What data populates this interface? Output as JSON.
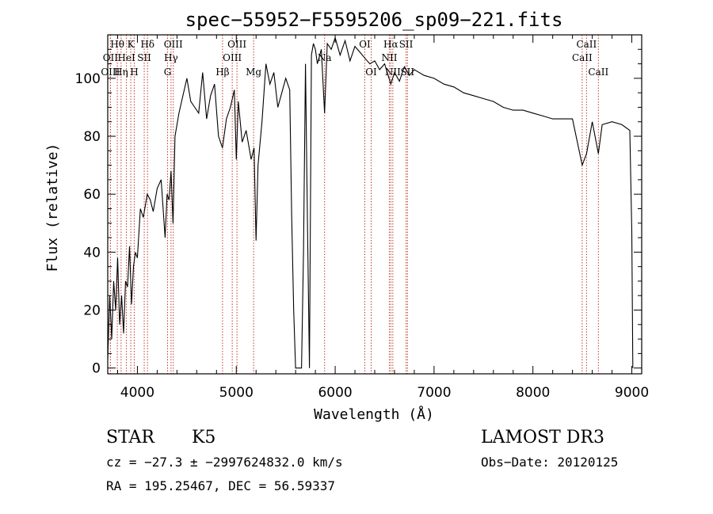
{
  "chart_data": {
    "type": "line",
    "title": "spec−55952−F5595206_sp09−221.fits",
    "xlabel": "Wavelength (Å)",
    "ylabel": "Flux (relative)",
    "xlim": [
      3700,
      9100
    ],
    "ylim": [
      -2,
      115
    ],
    "x_ticks": [
      4000,
      5000,
      6000,
      7000,
      8000,
      9000
    ],
    "y_ticks": [
      0,
      20,
      40,
      60,
      80,
      100
    ],
    "grid": false,
    "series": [
      {
        "x": [
          3700,
          3720,
          3740,
          3760,
          3780,
          3800,
          3820,
          3840,
          3860,
          3880,
          3900,
          3920,
          3940,
          3960,
          3980,
          4000,
          4030,
          4060,
          4100,
          4130,
          4160,
          4200,
          4240,
          4280,
          4300,
          4320,
          4340,
          4360,
          4380,
          4420,
          4460,
          4500,
          4540,
          4580,
          4620,
          4660,
          4700,
          4740,
          4780,
          4820,
          4860,
          4900,
          4940,
          4980,
          5000,
          5020,
          5060,
          5100,
          5150,
          5180,
          5200,
          5220,
          5260,
          5300,
          5340,
          5380,
          5420,
          5460,
          5500,
          5540,
          5560,
          5580,
          5600,
          5640,
          5660,
          5680,
          5700,
          5720,
          5740,
          5760,
          5780,
          5800,
          5820,
          5860,
          5893,
          5920,
          5960,
          6000,
          6050,
          6100,
          6150,
          6200,
          6250,
          6300,
          6350,
          6400,
          6450,
          6500,
          6563,
          6600,
          6650,
          6700,
          6750,
          6800,
          6900,
          7000,
          7100,
          7200,
          7300,
          7400,
          7500,
          7600,
          7700,
          7800,
          7900,
          8000,
          8100,
          8200,
          8300,
          8400,
          8498,
          8542,
          8600,
          8662,
          8700,
          8800,
          8900,
          8980,
          9000,
          9010
        ],
        "y": [
          3,
          25,
          10,
          30,
          20,
          38,
          15,
          25,
          12,
          30,
          28,
          42,
          22,
          35,
          40,
          38,
          55,
          52,
          60,
          58,
          54,
          62,
          65,
          45,
          60,
          58,
          68,
          50,
          80,
          88,
          94,
          100,
          92,
          90,
          88,
          102,
          86,
          94,
          98,
          80,
          76,
          86,
          90,
          96,
          72,
          92,
          78,
          82,
          72,
          76,
          44,
          70,
          85,
          105,
          98,
          102,
          90,
          95,
          100,
          96,
          52,
          20,
          0,
          0,
          0,
          40,
          105,
          50,
          0,
          108,
          112,
          110,
          105,
          110,
          88,
          112,
          110,
          114,
          108,
          113,
          106,
          111,
          109,
          107,
          105,
          106,
          103,
          105,
          98,
          102,
          99,
          104,
          101,
          103,
          101,
          100,
          98,
          97,
          95,
          94,
          93,
          92,
          90,
          89,
          89,
          88,
          87,
          86,
          86,
          86,
          70,
          74,
          85,
          74,
          84,
          85,
          84,
          82,
          47,
          0
        ]
      }
    ],
    "emission_lines": [
      {
        "name": "Hθ",
        "wave": 3797,
        "row": 0
      },
      {
        "name": "OII",
        "wave": 3727,
        "row": 1
      },
      {
        "name": "OIII",
        "wave": 3727,
        "row": 2
      },
      {
        "name": "HeI",
        "wave": 3889,
        "row": 1
      },
      {
        "name": "Hη",
        "wave": 3835,
        "row": 2
      },
      {
        "name": "K",
        "wave": 3933,
        "row": 0
      },
      {
        "name": "SII",
        "wave": 4069,
        "row": 1
      },
      {
        "name": "H",
        "wave": 3968,
        "row": 2
      },
      {
        "name": "Hδ",
        "wave": 4102,
        "row": 0
      },
      {
        "name": "OIII",
        "wave": 4363,
        "row": 0
      },
      {
        "name": "Hγ",
        "wave": 4340,
        "row": 1
      },
      {
        "name": "G",
        "wave": 4305,
        "row": 2
      },
      {
        "name": "Hβ",
        "wave": 4861,
        "row": 2
      },
      {
        "name": "OIII",
        "wave": 5007,
        "row": 0
      },
      {
        "name": "OIII",
        "wave": 4959,
        "row": 1
      },
      {
        "name": "Mg",
        "wave": 5175,
        "row": 2
      },
      {
        "name": "Na",
        "wave": 5893,
        "row": 1
      },
      {
        "name": "OI",
        "wave": 6300,
        "row": 0
      },
      {
        "name": "OI",
        "wave": 6364,
        "row": 2
      },
      {
        "name": "Hα",
        "wave": 6563,
        "row": 0
      },
      {
        "name": "SII",
        "wave": 6717,
        "row": 0
      },
      {
        "name": "NII",
        "wave": 6548,
        "row": 1
      },
      {
        "name": "NII",
        "wave": 6583,
        "row": 2
      },
      {
        "name": "SII",
        "wave": 6731,
        "row": 2
      },
      {
        "name": "CaII",
        "wave": 8542,
        "row": 0
      },
      {
        "name": "CaII",
        "wave": 8498,
        "row": 1
      },
      {
        "name": "CaII",
        "wave": 8662,
        "row": 2
      }
    ],
    "line_color": "#000000",
    "marker_color": "#c0392b"
  },
  "info": {
    "object_type": "STAR",
    "subclass": "K5",
    "survey": "LAMOST DR3",
    "cz": "cz = −27.3 ± −2997624832.0 km/s",
    "obs_date": "Obs−Date: 20120125",
    "radec": "RA = 195.25467, DEC =  56.59337"
  }
}
